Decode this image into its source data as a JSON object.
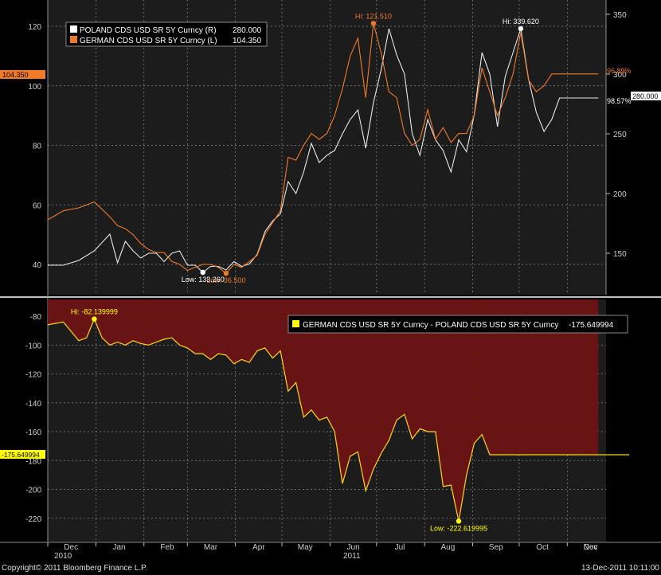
{
  "chart_data": [
    {
      "type": "line",
      "panel": "top",
      "left_axis": {
        "ticks": [
          40,
          60,
          80,
          100,
          120
        ]
      },
      "right_axis": {
        "ticks": [
          150,
          200,
          250,
          300,
          350
        ]
      },
      "legend": [
        {
          "label": "POLAND CDS USD SR 5Y Curncy (R)",
          "value": "280.000",
          "color": "#ffffff"
        },
        {
          "label": "GERMAN CDS USD SR 5Y Curncy (L)",
          "value": "104.350",
          "color": "#f07a28"
        }
      ],
      "series": [
        {
          "name": "POLAND CDS USD SR 5Y Curncy (R)",
          "axis": "right",
          "color": "#e8e8e8",
          "x": [
            0,
            10,
            20,
            30,
            40,
            45,
            50,
            55,
            60,
            65,
            70,
            75,
            80,
            85,
            90,
            95,
            100,
            105,
            110,
            115,
            120,
            125,
            130,
            135,
            140,
            145,
            150,
            155,
            160,
            165,
            170,
            175,
            180,
            185,
            190,
            195,
            200,
            205,
            210,
            215,
            220,
            225,
            230,
            235,
            240,
            245,
            250,
            255,
            260,
            265,
            270,
            275,
            280,
            285,
            290,
            295,
            300,
            305,
            310,
            315,
            320,
            325,
            330,
            335,
            340,
            345,
            350,
            355
          ],
          "values": [
            140,
            140,
            144,
            152,
            166,
            142,
            160,
            152,
            146,
            150,
            150,
            143,
            150,
            152,
            140,
            140,
            134,
            139,
            139,
            136,
            143,
            139,
            141,
            149,
            168,
            177,
            183,
            210,
            200,
            218,
            242,
            226,
            232,
            236,
            250,
            262,
            270,
            238,
            276,
            304,
            338,
            316,
            300,
            250,
            232,
            262,
            245,
            236,
            218,
            245,
            235,
            266,
            318,
            300,
            256,
            298,
            318,
            338,
            296,
            268,
            252,
            262,
            280,
            280,
            280,
            280,
            280,
            280
          ]
        },
        {
          "name": "GERMAN CDS USD SR 5Y Curncy (L)",
          "axis": "left",
          "color": "#f07a28",
          "x": [
            0,
            10,
            20,
            30,
            40,
            45,
            50,
            55,
            60,
            65,
            70,
            75,
            80,
            85,
            90,
            95,
            100,
            105,
            110,
            115,
            120,
            125,
            130,
            135,
            140,
            145,
            150,
            155,
            160,
            165,
            170,
            175,
            180,
            185,
            190,
            195,
            200,
            205,
            210,
            215,
            220,
            225,
            230,
            235,
            240,
            245,
            250,
            255,
            260,
            265,
            270,
            275,
            280,
            285,
            290,
            295,
            300,
            305,
            310,
            315,
            320,
            325,
            330,
            335,
            340,
            345,
            350,
            355
          ],
          "values": [
            55,
            58,
            59,
            61,
            56,
            53,
            52,
            50,
            47,
            45,
            44,
            44,
            41,
            40,
            38,
            39,
            40,
            40,
            39,
            37,
            40,
            39,
            41,
            43,
            50,
            54,
            58,
            76,
            75,
            80,
            84,
            82,
            84,
            90,
            99,
            110,
            116,
            96,
            121,
            111,
            98,
            96,
            84,
            80,
            82,
            92,
            82,
            86,
            81,
            84,
            84,
            90,
            106,
            98,
            90,
            96,
            104,
            118,
            102,
            98,
            100,
            104,
            104,
            104,
            104,
            104,
            104,
            104
          ]
        }
      ],
      "markers": [
        {
          "label": "Hi: 121.510",
          "series": 1,
          "x": 210,
          "color": "#f07a28"
        },
        {
          "label": "Low: 36.500",
          "series": 1,
          "x": 115,
          "color": "#f07a28"
        },
        {
          "label": "Hi: 339.620",
          "series": 0,
          "x": 305,
          "color": "#ffffff"
        },
        {
          "label": "Low: 133.260",
          "series": 0,
          "x": 100,
          "color": "#ffffff"
        }
      ],
      "edge_labels": {
        "left_value": "104.350",
        "right_value": "280.000",
        "pct_orange": "96.89%",
        "pct_white": "98.57%"
      }
    },
    {
      "type": "area",
      "panel": "bottom",
      "left_axis": {
        "ticks": [
          -80,
          -100,
          -120,
          -140,
          -160,
          -180,
          -200,
          -220
        ]
      },
      "legend": [
        {
          "label": "GERMAN CDS USD SR 5Y Curncy - POLAND CDS USD SR 5Y Curncy",
          "value": "-175.649994",
          "color": "#ffff00"
        }
      ],
      "series": [
        {
          "name": "GERMAN CDS USD SR 5Y Curncy - POLAND CDS USD SR 5Y Curncy",
          "color": "#ffd21e",
          "x": [
            0,
            10,
            20,
            25,
            30,
            35,
            40,
            45,
            50,
            55,
            60,
            65,
            70,
            75,
            80,
            85,
            90,
            95,
            100,
            105,
            110,
            115,
            120,
            125,
            130,
            135,
            140,
            145,
            150,
            155,
            160,
            165,
            170,
            175,
            180,
            185,
            190,
            195,
            200,
            205,
            210,
            215,
            220,
            225,
            230,
            235,
            240,
            245,
            250,
            255,
            260,
            265,
            270,
            275,
            280,
            285,
            290,
            295,
            300,
            305,
            310,
            315,
            320,
            325,
            330,
            335,
            340,
            345,
            350,
            355
          ],
          "values": [
            -86,
            -84,
            -97,
            -95,
            -82,
            -95,
            -100,
            -98,
            -100,
            -97,
            -99,
            -100,
            -98,
            -96,
            -95,
            -100,
            -102,
            -106,
            -106,
            -110,
            -106,
            -107,
            -113,
            -110,
            -112,
            -104,
            -102,
            -109,
            -104,
            -132,
            -126,
            -150,
            -145,
            -152,
            -150,
            -160,
            -196,
            -177,
            -174,
            -201,
            -186,
            -175,
            -166,
            -152,
            -148,
            -165,
            -158,
            -160,
            -160,
            -198,
            -197,
            -222,
            -190,
            -168,
            -162,
            -176,
            -176,
            -176,
            -176,
            -176,
            -176,
            -176,
            -176,
            -176,
            -176,
            -176,
            -176,
            -176,
            -176,
            -176
          ]
        }
      ],
      "markers": [
        {
          "label": "Hi: -82.139999",
          "x": 30,
          "color": "#ffff00"
        },
        {
          "label": "Low: -222.619995",
          "x": 265,
          "color": "#ffff00"
        }
      ],
      "edge_labels": {
        "left_value": "-175.649994"
      }
    }
  ],
  "x_axis": {
    "months": [
      "Dec",
      "Jan",
      "Feb",
      "Mar",
      "Apr",
      "May",
      "Jun",
      "Jul",
      "Aug",
      "Sep",
      "Oct",
      "Nov",
      "Dec"
    ],
    "year_labels": [
      "2010",
      "2011"
    ]
  },
  "footer": {
    "copyright": "Copyright© 2011 Bloomberg Finance L.P.",
    "timestamp": "13-Dec-2011 10:11:00"
  }
}
